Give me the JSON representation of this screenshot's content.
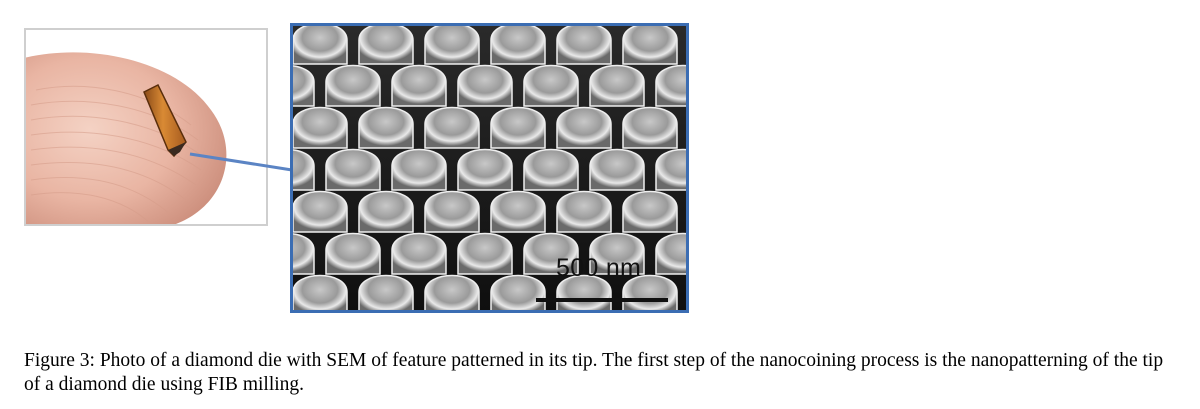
{
  "figure": {
    "caption": "Figure 3: Photo of a diamond die with SEM of feature patterned in its tip. The first step of the nanocoining process is the nanopatterning of the tip of a diamond die using FIB milling.",
    "scale_bar_label": "500 nm"
  },
  "colors": {
    "sem_border": "#3b6db3",
    "connector_line": "#5b84c4",
    "photo_border": "#cfcfcf",
    "skin": "#e9b5a3",
    "diamond_die": "#c97a2a"
  }
}
